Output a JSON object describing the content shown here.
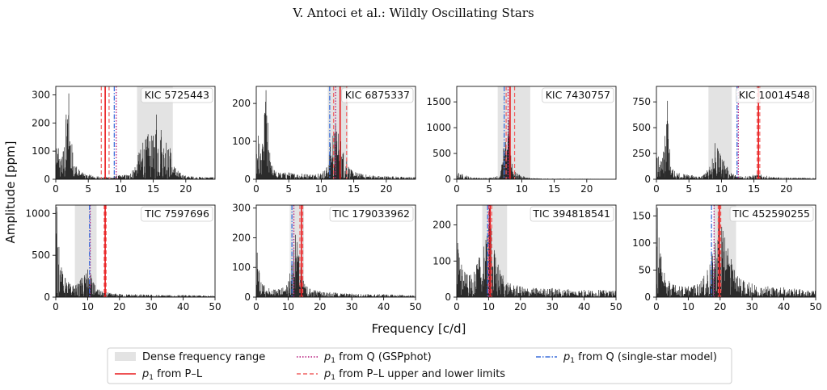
{
  "header": "V. Antoci  et al.: Wildly Oscillating Stars",
  "axes": {
    "ylabel": "Amplitude [ppm]",
    "xlabel": "Frequency [c/d]"
  },
  "legend": {
    "dense": "Dense frequency range",
    "pl": "from P–L",
    "gsp": "from Q (GSPphot)",
    "limits": "from P–L upper and lower limits",
    "single": "from Q (single-star model)",
    "p_symbol": "p",
    "p_sub": "1"
  },
  "colors": {
    "spectrum": "#2b2b2b",
    "dense": "#e3e3e3",
    "pl": "#e8191c",
    "limits": "#f06060",
    "gsp": "#b5177a",
    "single": "#3b6fdc"
  },
  "chart_data": [
    {
      "type": "line",
      "star": "KIC 5725443",
      "xlim": [
        0,
        24.5
      ],
      "ylim": [
        0,
        330
      ],
      "xticks": [
        0,
        5,
        10,
        15,
        20
      ],
      "yticks": [
        0,
        100,
        200,
        300
      ],
      "dense_range": [
        12.5,
        18
      ],
      "pl": 7.6,
      "pl_limits": [
        7.0,
        8.2
      ],
      "q_gspphot": 9.3,
      "q_single": 9.0,
      "ylabel": "Amplitude [ppm]",
      "xlabel": "Frequency [c/d]",
      "peaks": [
        [
          0.4,
          110
        ],
        [
          1.0,
          80
        ],
        [
          1.6,
          230
        ],
        [
          2.0,
          305
        ],
        [
          2.6,
          95
        ],
        [
          3.2,
          45
        ],
        [
          4.2,
          22
        ],
        [
          5.4,
          15
        ],
        [
          6.5,
          10
        ],
        [
          7.5,
          8
        ],
        [
          9.0,
          12
        ],
        [
          11.5,
          20
        ],
        [
          12.8,
          95
        ],
        [
          13.4,
          130
        ],
        [
          14.2,
          160
        ],
        [
          15.0,
          155
        ],
        [
          15.5,
          230
        ],
        [
          16.2,
          175
        ],
        [
          17.0,
          130
        ],
        [
          17.6,
          110
        ],
        [
          18.4,
          40
        ],
        [
          19.6,
          15
        ],
        [
          21.0,
          10
        ],
        [
          23.0,
          8
        ]
      ]
    },
    {
      "type": "line",
      "star": "KIC 6875337",
      "xlim": [
        0,
        24.5
      ],
      "ylim": [
        0,
        245
      ],
      "xticks": [
        0,
        5,
        10,
        15,
        20
      ],
      "yticks": [
        0,
        100,
        200
      ],
      "dense_range": [
        11.0,
        14.1
      ],
      "pl": 12.9,
      "pl_limits": [
        11.9,
        13.9
      ],
      "q_gspphot": 12.2,
      "q_single": 11.3,
      "ylabel": "Amplitude [ppm]",
      "xlabel": "Frequency [c/d]",
      "peaks": [
        [
          0.3,
          115
        ],
        [
          0.9,
          80
        ],
        [
          1.5,
          235
        ],
        [
          2.2,
          45
        ],
        [
          3.0,
          20
        ],
        [
          5.0,
          18
        ],
        [
          7.0,
          15
        ],
        [
          9.5,
          15
        ],
        [
          10.8,
          30
        ],
        [
          11.4,
          95
        ],
        [
          11.8,
          115
        ],
        [
          12.2,
          145
        ],
        [
          12.6,
          120
        ],
        [
          13.0,
          100
        ],
        [
          13.4,
          70
        ],
        [
          13.9,
          50
        ],
        [
          14.6,
          25
        ],
        [
          16,
          15
        ],
        [
          18,
          10
        ],
        [
          21,
          8
        ],
        [
          23.5,
          6
        ]
      ]
    },
    {
      "type": "line",
      "star": "KIC 7430757",
      "xlim": [
        0,
        24.5
      ],
      "ylim": [
        0,
        1800
      ],
      "xticks": [
        0,
        5,
        10,
        15,
        20
      ],
      "yticks": [
        0,
        500,
        1000,
        1500
      ],
      "dense_range": [
        6.3,
        11.3
      ],
      "pl": 8.2,
      "pl_limits": [
        7.6,
        8.9
      ],
      "q_gspphot": 7.9,
      "q_single": 7.3,
      "ylabel": "Amplitude [ppm]",
      "xlabel": "Frequency [c/d]",
      "peaks": [
        [
          0.3,
          120
        ],
        [
          0.8,
          100
        ],
        [
          1.5,
          70
        ],
        [
          3.0,
          30
        ],
        [
          5.0,
          30
        ],
        [
          6.2,
          60
        ],
        [
          6.8,
          160
        ],
        [
          7.2,
          600
        ],
        [
          7.5,
          720
        ],
        [
          7.8,
          560
        ],
        [
          8.2,
          1780
        ],
        [
          8.5,
          300
        ],
        [
          9.0,
          140
        ],
        [
          9.6,
          90
        ],
        [
          10.4,
          50
        ],
        [
          11.2,
          30
        ],
        [
          13,
          15
        ],
        [
          16,
          12
        ],
        [
          20,
          10
        ],
        [
          23,
          8
        ]
      ]
    },
    {
      "type": "line",
      "star": "KIC 10014548",
      "xlim": [
        0,
        24.5
      ],
      "ylim": [
        0,
        900
      ],
      "xticks": [
        0,
        5,
        10,
        15,
        20
      ],
      "yticks": [
        0,
        250,
        500,
        750
      ],
      "dense_range": [
        8.0,
        11.6
      ],
      "pl": 15.7,
      "pl_limits": [
        15.5,
        15.9
      ],
      "q_gspphot": 12.6,
      "q_single": 12.4,
      "ylabel": "Amplitude [ppm]",
      "xlabel": "Frequency [c/d]",
      "peaks": [
        [
          0.3,
          220
        ],
        [
          0.8,
          170
        ],
        [
          1.3,
          420
        ],
        [
          1.7,
          760
        ],
        [
          2.2,
          120
        ],
        [
          2.8,
          80
        ],
        [
          3.5,
          60
        ],
        [
          4.2,
          50
        ],
        [
          5.5,
          40
        ],
        [
          7.0,
          30
        ],
        [
          8.2,
          120
        ],
        [
          8.6,
          200
        ],
        [
          9.0,
          350
        ],
        [
          9.4,
          300
        ],
        [
          9.9,
          230
        ],
        [
          10.4,
          180
        ],
        [
          10.9,
          120
        ],
        [
          11.5,
          60
        ],
        [
          13.0,
          30
        ],
        [
          15.7,
          50
        ],
        [
          18,
          20
        ],
        [
          22,
          15
        ]
      ]
    },
    {
      "type": "line",
      "star": "TIC 7597696",
      "xlim": [
        0,
        50
      ],
      "ylim": [
        0,
        1100
      ],
      "xticks": [
        0,
        10,
        20,
        30,
        40,
        50
      ],
      "yticks": [
        0,
        500,
        1000
      ],
      "dense_range": [
        6.0,
        12.8
      ],
      "pl": 15.5,
      "pl_limits": [
        15.2,
        15.8
      ],
      "q_gspphot": 10.8,
      "q_single": 10.6,
      "ylabel": "Amplitude [ppm]",
      "xlabel": "Frequency [c/d]",
      "peaks": [
        [
          0.3,
          1080
        ],
        [
          1.0,
          600
        ],
        [
          2.0,
          310
        ],
        [
          3.0,
          230
        ],
        [
          4.0,
          180
        ],
        [
          5.5,
          140
        ],
        [
          7.0,
          160
        ],
        [
          8.0,
          230
        ],
        [
          9.0,
          260
        ],
        [
          10.0,
          330
        ],
        [
          11.0,
          270
        ],
        [
          12.0,
          160
        ],
        [
          13.5,
          90
        ],
        [
          16,
          55
        ],
        [
          20,
          40
        ],
        [
          25,
          35
        ],
        [
          30,
          30
        ],
        [
          35,
          25
        ],
        [
          40,
          25
        ],
        [
          45,
          20
        ],
        [
          49,
          18
        ]
      ]
    },
    {
      "type": "line",
      "star": "TIC 179033962",
      "xlim": [
        0,
        50
      ],
      "ylim": [
        0,
        310
      ],
      "xticks": [
        0,
        10,
        20,
        30,
        40,
        50
      ],
      "yticks": [
        0,
        100,
        200,
        300
      ],
      "dense_range": [
        10.5,
        15.0
      ],
      "pl": 14.2,
      "pl_limits": [
        13.7,
        14.6
      ],
      "q_gspphot": 11.8,
      "q_single": 11.2,
      "ylabel": "Amplitude [ppm]",
      "xlabel": "Frequency [c/d]",
      "peaks": [
        [
          0.3,
          150
        ],
        [
          0.9,
          90
        ],
        [
          1.5,
          50
        ],
        [
          2.5,
          40
        ],
        [
          4,
          30
        ],
        [
          6,
          25
        ],
        [
          8,
          30
        ],
        [
          9.5,
          40
        ],
        [
          10.5,
          80
        ],
        [
          11.2,
          120
        ],
        [
          11.8,
          160
        ],
        [
          12.3,
          210
        ],
        [
          12.8,
          185
        ],
        [
          13.4,
          140
        ],
        [
          14.0,
          100
        ],
        [
          14.8,
          55
        ],
        [
          16,
          35
        ],
        [
          20,
          20
        ],
        [
          25,
          15
        ],
        [
          30,
          12
        ],
        [
          35,
          10
        ],
        [
          40,
          10
        ],
        [
          45,
          8
        ],
        [
          49,
          6
        ]
      ]
    },
    {
      "type": "line",
      "star": "TIC 394818541",
      "xlim": [
        0,
        50
      ],
      "ylim": [
        0,
        255
      ],
      "xticks": [
        0,
        10,
        20,
        30,
        40,
        50
      ],
      "yticks": [
        0,
        100,
        200
      ],
      "dense_range": [
        8.0,
        15.8
      ],
      "pl": 10.5,
      "pl_limits": [
        10.0,
        11.0
      ],
      "q_gspphot": 10.2,
      "q_single": 9.7,
      "ylabel": "Amplitude [ppm]",
      "xlabel": "Frequency [c/d]",
      "peaks": [
        [
          0.3,
          150
        ],
        [
          0.8,
          110
        ],
        [
          1.5,
          90
        ],
        [
          2.5,
          70
        ],
        [
          4,
          60
        ],
        [
          5.5,
          70
        ],
        [
          7,
          110
        ],
        [
          8.5,
          140
        ],
        [
          9.5,
          170
        ],
        [
          10.2,
          245
        ],
        [
          10.8,
          190
        ],
        [
          11.8,
          130
        ],
        [
          13,
          90
        ],
        [
          14.5,
          60
        ],
        [
          16,
          40
        ],
        [
          20,
          30
        ],
        [
          25,
          25
        ],
        [
          30,
          25
        ],
        [
          35,
          22
        ],
        [
          40,
          20
        ],
        [
          45,
          20
        ],
        [
          49,
          18
        ]
      ]
    },
    {
      "type": "line",
      "star": "TIC 452590255",
      "xlim": [
        0,
        50
      ],
      "ylim": [
        0,
        170
      ],
      "xticks": [
        0,
        10,
        20,
        30,
        40,
        50
      ],
      "yticks": [
        0,
        50,
        100,
        150
      ],
      "dense_range": [
        18.0,
        25.0
      ],
      "pl": 19.8,
      "pl_limits": [
        19.4,
        20.2
      ],
      "q_gspphot": 18.1,
      "q_single": 17.3,
      "ylabel": "Amplitude [ppm]",
      "xlabel": "Frequency [c/d]",
      "peaks": [
        [
          0.3,
          165
        ],
        [
          0.8,
          110
        ],
        [
          1.5,
          75
        ],
        [
          2.5,
          45
        ],
        [
          4,
          30
        ],
        [
          6,
          22
        ],
        [
          8,
          20
        ],
        [
          10,
          20
        ],
        [
          12,
          22
        ],
        [
          14,
          30
        ],
        [
          16,
          50
        ],
        [
          17.5,
          80
        ],
        [
          18.5,
          100
        ],
        [
          19.5,
          150
        ],
        [
          20.5,
          130
        ],
        [
          21.5,
          110
        ],
        [
          22.5,
          90
        ],
        [
          23.5,
          70
        ],
        [
          24.5,
          50
        ],
        [
          26,
          35
        ],
        [
          30,
          25
        ],
        [
          35,
          20
        ],
        [
          40,
          18
        ],
        [
          45,
          15
        ],
        [
          49,
          12
        ]
      ]
    }
  ]
}
